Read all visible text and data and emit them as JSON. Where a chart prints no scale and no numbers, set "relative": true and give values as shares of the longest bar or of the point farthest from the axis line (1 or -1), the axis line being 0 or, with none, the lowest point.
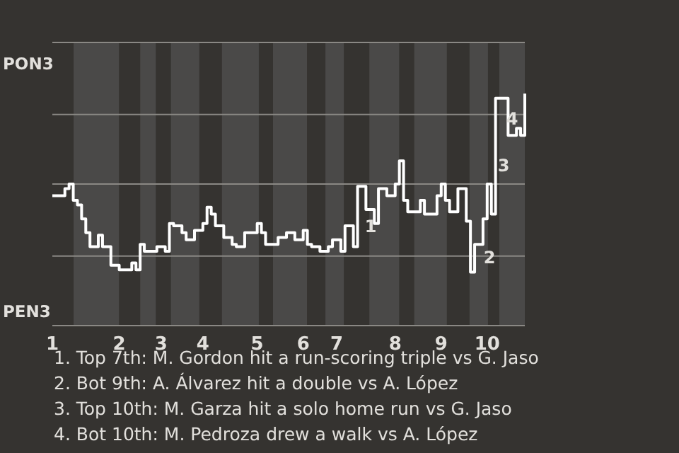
{
  "chart_data": {
    "type": "step",
    "relative": true,
    "categories": [
      "1",
      null,
      null,
      null,
      null,
      null,
      null,
      null,
      null,
      null,
      null,
      null,
      null,
      null,
      null,
      null,
      "2",
      null,
      null,
      null,
      null,
      null,
      null,
      null,
      null,
      null,
      "3",
      null,
      null,
      null,
      null,
      null,
      null,
      null,
      null,
      null,
      "4",
      null,
      null,
      null,
      null,
      null,
      null,
      null,
      null,
      null,
      null,
      null,
      null,
      "5",
      null,
      null,
      null,
      null,
      null,
      null,
      null,
      null,
      null,
      null,
      "6",
      null,
      null,
      null,
      null,
      null,
      null,
      null,
      "7",
      null,
      null,
      null,
      null,
      null,
      null,
      null,
      null,
      null,
      null,
      null,
      null,
      null,
      "8",
      null,
      null,
      null,
      null,
      null,
      null,
      null,
      null,
      null,
      null,
      "9",
      null,
      null,
      null,
      null,
      null,
      null,
      null,
      null,
      null,
      null,
      "10",
      null,
      null,
      null,
      null,
      null,
      null,
      null,
      null,
      null
    ],
    "series": [
      {
        "color": "#ffffff",
        "values": [
          0.56,
          0.56,
          0.56,
          0.59,
          0.61,
          0.54,
          0.52,
          0.46,
          0.4,
          0.34,
          0.34,
          0.39,
          0.34,
          0.34,
          0.26,
          0.26,
          0.24,
          0.24,
          0.24,
          0.27,
          0.24,
          0.35,
          0.32,
          0.32,
          0.32,
          0.34,
          0.34,
          0.32,
          0.44,
          0.43,
          0.43,
          0.4,
          0.37,
          0.37,
          0.41,
          0.41,
          0.44,
          0.51,
          0.48,
          0.43,
          0.43,
          0.38,
          0.38,
          0.35,
          0.34,
          0.34,
          0.4,
          0.4,
          0.4,
          0.44,
          0.4,
          0.35,
          0.35,
          0.35,
          0.38,
          0.38,
          0.4,
          0.4,
          0.37,
          0.37,
          0.41,
          0.35,
          0.34,
          0.34,
          0.32,
          0.32,
          0.34,
          0.37,
          0.37,
          0.32,
          0.43,
          0.43,
          0.34,
          0.6,
          0.6,
          0.5,
          0.5,
          0.44,
          0.59,
          0.59,
          0.56,
          0.56,
          0.61,
          0.71,
          0.54,
          0.49,
          0.49,
          0.49,
          0.54,
          0.48,
          0.48,
          0.48,
          0.56,
          0.61,
          0.54,
          0.49,
          0.49,
          0.59,
          0.59,
          0.45,
          0.23,
          0.35,
          0.35,
          0.46,
          0.61,
          0.48,
          0.98,
          0.98,
          0.98,
          0.82,
          0.82,
          0.85,
          0.82,
          1
        ]
      }
    ],
    "ref_lines": [
      {
        "axis": "y",
        "value": 0.3,
        "color": "#8a8884"
      },
      {
        "axis": "y",
        "value": 0.61,
        "color": "#8a8884"
      },
      {
        "axis": "y",
        "value": 0.91,
        "color": "#8a8884"
      },
      {
        "axis": "y",
        "value": 1.22,
        "color": "#8a8884"
      }
    ],
    "annotations": [
      "PON3",
      "PEN3",
      "1",
      "2",
      "3",
      "4",
      "1. Top 7th: M. Gordon hit a run-scoring triple vs G. Jaso",
      "2. Bot 9th: A. Álvarez hit a double vs A. López",
      "3. Top 10th: M. Garza hit a solo home run vs G. Jaso",
      "4. Bot 10th: M. Pedroza drew a walk vs A. López"
    ]
  }
}
